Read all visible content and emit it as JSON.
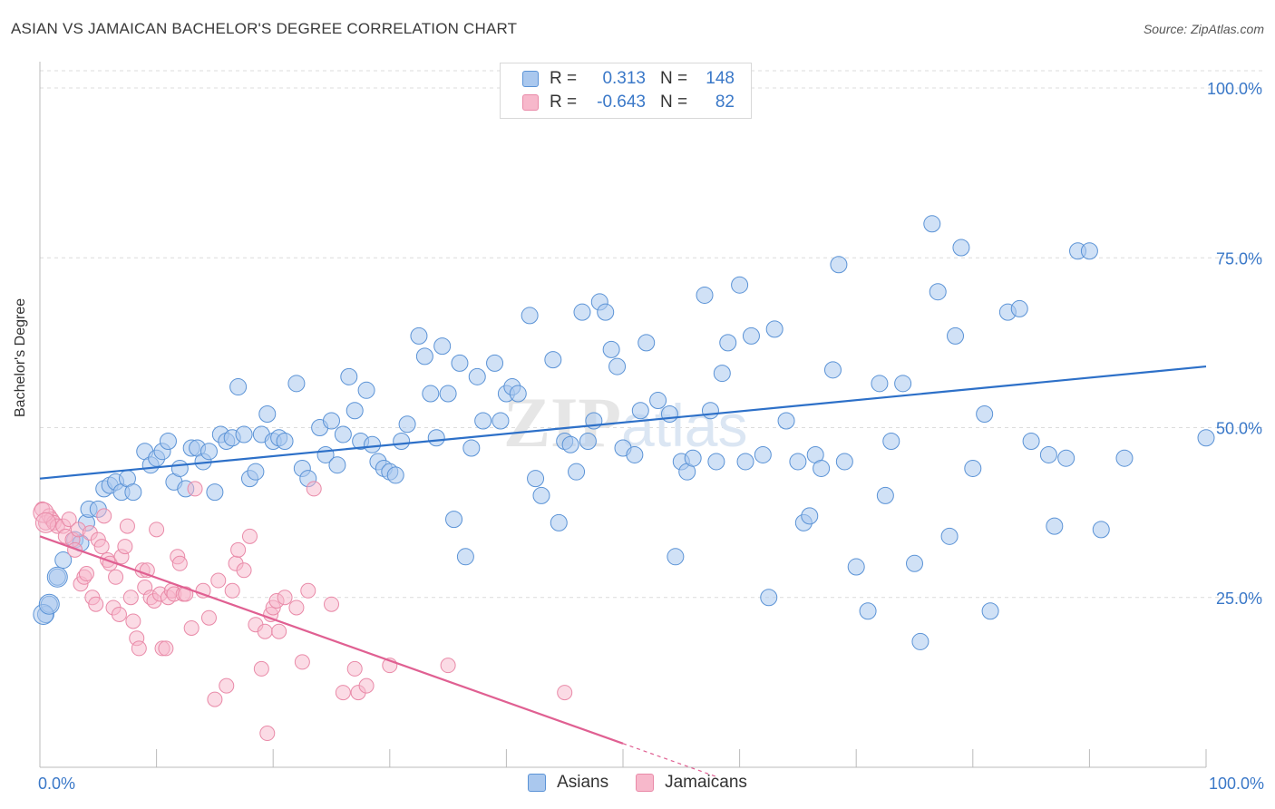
{
  "title": "ASIAN VS JAMAICAN BACHELOR'S DEGREE CORRELATION CHART",
  "source": "Source: ZipAtlas.com",
  "watermark": "ZIPatlas",
  "colors": {
    "asian_fill": "#aac8ee",
    "asian_stroke": "#5b93d6",
    "asian_line": "#2d70c8",
    "jamaican_fill": "#f7b8cb",
    "jamaican_stroke": "#e98aa8",
    "jamaican_line": "#e06092",
    "accent_text": "#3a78c8"
  },
  "legend": {
    "rows": [
      {
        "r_label": "R =",
        "r_value": "0.313",
        "n_label": "N =",
        "n_value": "148"
      },
      {
        "r_label": "R =",
        "r_value": "-0.643",
        "n_label": "N =",
        "n_value": "82"
      }
    ]
  },
  "bottom_legend": {
    "asians": "Asians",
    "jamaicans": "Jamaicans"
  },
  "chart_data": {
    "type": "scatter",
    "title": "ASIAN VS JAMAICAN BACHELOR'S DEGREE CORRELATION CHART",
    "xlabel": "",
    "ylabel": "Bachelor's Degree",
    "xlim": [
      0,
      100
    ],
    "ylim": [
      0,
      100
    ],
    "x_tick_labels": [
      "0.0%",
      "100.0%"
    ],
    "y_tick_labels": [
      "25.0%",
      "50.0%",
      "75.0%",
      "100.0%"
    ],
    "y_ticks": [
      25,
      50,
      75,
      100
    ],
    "grid": true,
    "legend_position": "top-center",
    "series": [
      {
        "name": "Asians",
        "R": 0.313,
        "N": 148,
        "trend": {
          "x0": 0,
          "y0": 42.5,
          "x1": 100,
          "y1": 59
        },
        "points": [
          [
            0.5,
            22.5
          ],
          [
            0.8,
            24
          ],
          [
            1.5,
            28
          ],
          [
            2,
            30.5
          ],
          [
            3,
            33.5
          ],
          [
            3.5,
            33
          ],
          [
            4,
            36
          ],
          [
            4.2,
            38
          ],
          [
            5,
            38
          ],
          [
            5.5,
            41
          ],
          [
            6,
            41.5
          ],
          [
            6.5,
            42
          ],
          [
            7,
            40.5
          ],
          [
            7.5,
            42.5
          ],
          [
            8,
            40.5
          ],
          [
            9,
            46.5
          ],
          [
            9.5,
            44.5
          ],
          [
            10,
            45.5
          ],
          [
            10.5,
            46.5
          ],
          [
            11,
            48
          ],
          [
            11.5,
            42
          ],
          [
            12,
            44
          ],
          [
            12.5,
            41
          ],
          [
            13,
            47
          ],
          [
            13.5,
            47
          ],
          [
            14,
            45
          ],
          [
            14.5,
            46.5
          ],
          [
            15,
            40.5
          ],
          [
            15.5,
            49
          ],
          [
            16,
            48
          ],
          [
            16.5,
            48.5
          ],
          [
            17,
            56
          ],
          [
            17.5,
            49
          ],
          [
            18,
            42.5
          ],
          [
            18.5,
            43.5
          ],
          [
            19,
            49
          ],
          [
            19.5,
            52
          ],
          [
            20,
            48
          ],
          [
            20.5,
            48.5
          ],
          [
            21,
            48
          ],
          [
            22,
            56.5
          ],
          [
            22.5,
            44
          ],
          [
            23,
            42.5
          ],
          [
            24,
            50
          ],
          [
            24.5,
            46
          ],
          [
            25,
            51
          ],
          [
            25.5,
            44.5
          ],
          [
            26,
            49
          ],
          [
            26.5,
            57.5
          ],
          [
            27,
            52.5
          ],
          [
            27.5,
            48
          ],
          [
            28,
            55.5
          ],
          [
            28.5,
            47.5
          ],
          [
            29,
            45
          ],
          [
            29.5,
            44
          ],
          [
            30,
            43.5
          ],
          [
            30.5,
            43
          ],
          [
            31,
            48
          ],
          [
            31.5,
            50.5
          ],
          [
            32.5,
            63.5
          ],
          [
            33,
            60.5
          ],
          [
            33.5,
            55
          ],
          [
            34,
            48.5
          ],
          [
            34.5,
            62
          ],
          [
            35,
            55
          ],
          [
            35.5,
            36.5
          ],
          [
            36,
            59.5
          ],
          [
            36.5,
            31
          ],
          [
            37,
            47
          ],
          [
            37.5,
            57.5
          ],
          [
            38,
            51
          ],
          [
            39,
            59.5
          ],
          [
            39.5,
            51
          ],
          [
            40,
            55
          ],
          [
            40.5,
            56
          ],
          [
            41,
            55
          ],
          [
            42,
            66.5
          ],
          [
            42.5,
            42.5
          ],
          [
            43,
            40
          ],
          [
            44,
            60
          ],
          [
            44.5,
            36
          ],
          [
            45,
            48
          ],
          [
            45.5,
            47.5
          ],
          [
            46,
            43.5
          ],
          [
            46.5,
            67
          ],
          [
            47,
            48
          ],
          [
            47.5,
            51
          ],
          [
            48,
            68.5
          ],
          [
            48.5,
            67
          ],
          [
            49,
            61.5
          ],
          [
            49.5,
            59
          ],
          [
            50,
            47
          ],
          [
            51,
            46
          ],
          [
            51.5,
            52.5
          ],
          [
            52,
            62.5
          ],
          [
            53,
            54
          ],
          [
            54,
            52
          ],
          [
            54.5,
            31
          ],
          [
            55,
            45
          ],
          [
            55.5,
            43.5
          ],
          [
            56,
            45.5
          ],
          [
            57,
            69.5
          ],
          [
            57.5,
            52.5
          ],
          [
            58,
            45
          ],
          [
            58.5,
            58
          ],
          [
            59,
            62.5
          ],
          [
            60,
            71
          ],
          [
            60.5,
            45
          ],
          [
            61,
            63.5
          ],
          [
            62,
            46
          ],
          [
            62.5,
            25
          ],
          [
            63,
            64.5
          ],
          [
            64,
            51
          ],
          [
            65,
            45
          ],
          [
            65.5,
            36
          ],
          [
            66,
            37
          ],
          [
            66.5,
            46
          ],
          [
            67,
            44
          ],
          [
            68,
            58.5
          ],
          [
            68.5,
            74
          ],
          [
            69,
            45
          ],
          [
            70,
            29.5
          ],
          [
            71,
            23
          ],
          [
            72,
            56.5
          ],
          [
            72.5,
            40
          ],
          [
            73,
            48
          ],
          [
            74,
            56.5
          ],
          [
            75,
            30
          ],
          [
            75.5,
            18.5
          ],
          [
            76.5,
            80
          ],
          [
            77,
            70
          ],
          [
            78,
            34
          ],
          [
            78.5,
            63.5
          ],
          [
            79,
            76.5
          ],
          [
            80,
            44
          ],
          [
            81,
            52
          ],
          [
            81.5,
            23
          ],
          [
            83,
            67
          ],
          [
            84,
            67.5
          ],
          [
            85,
            48
          ],
          [
            86.5,
            46
          ],
          [
            87,
            35.5
          ],
          [
            88,
            45.5
          ],
          [
            89,
            76
          ],
          [
            90,
            76
          ],
          [
            91,
            35
          ],
          [
            93,
            45.5
          ],
          [
            100,
            48.5
          ]
        ]
      },
      {
        "name": "Jamaicans",
        "R": -0.643,
        "N": 82,
        "trend": {
          "x0": 0,
          "y0": 34,
          "x1": 50,
          "y1": 3.5,
          "dash_to_x": 58
        },
        "points": [
          [
            0.2,
            38
          ],
          [
            0.5,
            36
          ],
          [
            0.8,
            37
          ],
          [
            1,
            36.5
          ],
          [
            1.2,
            36
          ],
          [
            1.5,
            35.5
          ],
          [
            2,
            35.5
          ],
          [
            2.2,
            34
          ],
          [
            2.5,
            36.5
          ],
          [
            2.8,
            33.5
          ],
          [
            3,
            32
          ],
          [
            3.3,
            35
          ],
          [
            3.5,
            27
          ],
          [
            3.8,
            28
          ],
          [
            4,
            28.5
          ],
          [
            4.3,
            34.5
          ],
          [
            4.5,
            25
          ],
          [
            4.8,
            24
          ],
          [
            5,
            33.5
          ],
          [
            5.3,
            32.5
          ],
          [
            5.5,
            37
          ],
          [
            5.8,
            30.5
          ],
          [
            6,
            30
          ],
          [
            6.3,
            23.5
          ],
          [
            6.5,
            28
          ],
          [
            6.8,
            22.5
          ],
          [
            7,
            31
          ],
          [
            7.3,
            32.5
          ],
          [
            7.5,
            35.5
          ],
          [
            7.8,
            25
          ],
          [
            8,
            21.5
          ],
          [
            8.3,
            19
          ],
          [
            8.5,
            17.5
          ],
          [
            8.8,
            29
          ],
          [
            9,
            26.5
          ],
          [
            9.2,
            29
          ],
          [
            9.5,
            25
          ],
          [
            9.8,
            24.5
          ],
          [
            10,
            35
          ],
          [
            10.3,
            25.5
          ],
          [
            10.5,
            17.5
          ],
          [
            10.8,
            17.5
          ],
          [
            11,
            25
          ],
          [
            11.3,
            26
          ],
          [
            11.5,
            25.5
          ],
          [
            11.8,
            31
          ],
          [
            12,
            30
          ],
          [
            12.3,
            25.5
          ],
          [
            12.5,
            25.5
          ],
          [
            13,
            20.5
          ],
          [
            13.3,
            41
          ],
          [
            14,
            26
          ],
          [
            14.5,
            22
          ],
          [
            15,
            10
          ],
          [
            15.3,
            27.5
          ],
          [
            16,
            12
          ],
          [
            16.5,
            26
          ],
          [
            16.8,
            30
          ],
          [
            17,
            32
          ],
          [
            17.5,
            29
          ],
          [
            18,
            34
          ],
          [
            18.5,
            21
          ],
          [
            19,
            14.5
          ],
          [
            19.3,
            20
          ],
          [
            19.5,
            5
          ],
          [
            19.8,
            22.5
          ],
          [
            20,
            23.5
          ],
          [
            20.3,
            24.5
          ],
          [
            20.5,
            20
          ],
          [
            21,
            25
          ],
          [
            22,
            23.5
          ],
          [
            22.5,
            15.5
          ],
          [
            23,
            26
          ],
          [
            23.5,
            41
          ],
          [
            25,
            24
          ],
          [
            26,
            11
          ],
          [
            27,
            14.5
          ],
          [
            27.3,
            11
          ],
          [
            28,
            12
          ],
          [
            30,
            15
          ],
          [
            35,
            15
          ],
          [
            45,
            11
          ]
        ]
      }
    ]
  }
}
